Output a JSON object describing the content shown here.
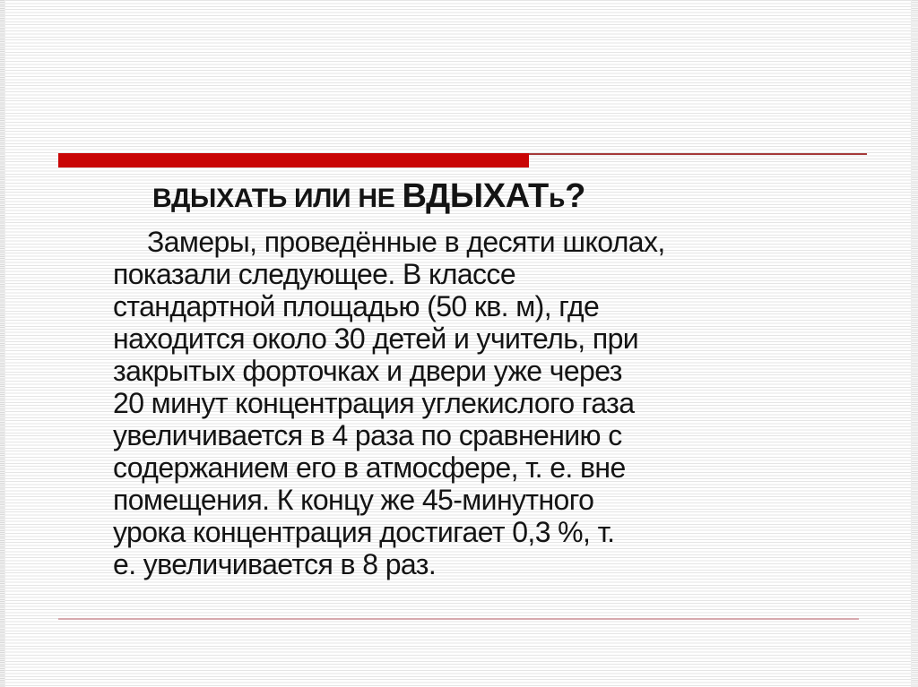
{
  "slide": {
    "title": {
      "text": "ВДЫХАТЬ ИЛИ НЕ ВДЫХАТЬ?",
      "segments": [
        {
          "text": "ВДЫХАТЬ ИЛИ НЕ ",
          "size": "small"
        },
        {
          "text": "ВДЫХАТ",
          "size": "large"
        },
        {
          "text": "ь",
          "size": "small"
        },
        {
          "text": "?",
          "size": "large"
        }
      ]
    },
    "body": {
      "lines": [
        "Замеры, проведённые в десяти школах,",
        "показали следующее. В классе",
        "стандартной площадью (50 кв. м), где",
        "находится около 30 детей и учитель, при",
        "закрытых форточках и двери уже через",
        "20 минут концентрация углекислого газа",
        "увеличивается в 4 раза по сравнению с",
        "содержанием его в атмосфере, т. е. вне",
        "помещения. К концу же 45-минутного",
        "урока концентрация достигает 0,3 %, т.",
        "е. увеличивается в 8 раз."
      ]
    },
    "colors": {
      "accent_bar": "#c90606",
      "accent_thin_line": "#a63a3a",
      "footer_rule": "#d6a9ae",
      "text": "#141414",
      "stripe": "#e5e5e5"
    }
  }
}
